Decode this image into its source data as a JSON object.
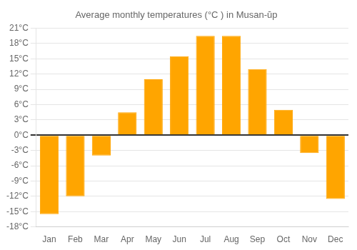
{
  "chart_data": {
    "type": "bar",
    "title": "Average monthly temperatures (°C ) in Musan-ŭp",
    "categories": [
      "Jan",
      "Feb",
      "Mar",
      "Apr",
      "May",
      "Jun",
      "Jul",
      "Aug",
      "Sep",
      "Oct",
      "Nov",
      "Dec"
    ],
    "values": [
      -15.5,
      -12.0,
      -4.0,
      4.5,
      11.0,
      15.5,
      19.5,
      19.5,
      13.0,
      5.0,
      -3.5,
      -12.5
    ],
    "color": "#FFA500",
    "ylim": [
      -18,
      21
    ],
    "yticks": [
      {
        "value": -18,
        "label": "-18°C"
      },
      {
        "value": -15,
        "label": "-15°C"
      },
      {
        "value": -12,
        "label": "-12°C"
      },
      {
        "value": -9,
        "label": "-9°C"
      },
      {
        "value": -6,
        "label": "-6°C"
      },
      {
        "value": -3,
        "label": "-3°C"
      },
      {
        "value": 0,
        "label": "0°C"
      },
      {
        "value": 3,
        "label": "3°C"
      },
      {
        "value": 6,
        "label": "6°C"
      },
      {
        "value": 9,
        "label": "9°C"
      },
      {
        "value": 12,
        "label": "12°C"
      },
      {
        "value": 15,
        "label": "15°C"
      },
      {
        "value": 18,
        "label": "18°C"
      },
      {
        "value": 21,
        "label": "21°C"
      }
    ],
    "grid": true
  }
}
